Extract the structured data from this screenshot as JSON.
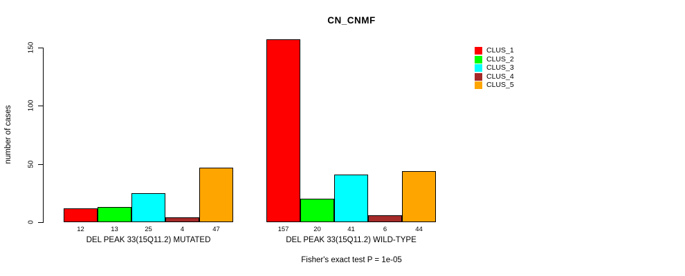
{
  "title": "CN_CNMF",
  "ylabel": "number of cases",
  "footer": "Fisher's exact test P = 1e-05",
  "legend": {
    "position": "top-right",
    "items": [
      {
        "label": "CLUS_1",
        "color": "#FF0000"
      },
      {
        "label": "CLUS_2",
        "color": "#00FF00"
      },
      {
        "label": "CLUS_3",
        "color": "#00FFFF"
      },
      {
        "label": "CLUS_4",
        "color": "#A52A2A"
      },
      {
        "label": "CLUS_5",
        "color": "#FFA500"
      }
    ]
  },
  "chart_data": {
    "type": "bar",
    "title": "CN_CNMF",
    "xlabel": "",
    "ylabel": "number of cases",
    "yticks": [
      0,
      50,
      100,
      150
    ],
    "ylim": [
      0,
      157
    ],
    "grid": false,
    "legend_position": "top-right",
    "series": [
      "CLUS_1",
      "CLUS_2",
      "CLUS_3",
      "CLUS_4",
      "CLUS_5"
    ],
    "colors": [
      "#FF0000",
      "#00FF00",
      "#00FFFF",
      "#A52A2A",
      "#FFA500"
    ],
    "groups": [
      {
        "label": "DEL PEAK 33(15Q11.2) MUTATED",
        "values": [
          12,
          13,
          25,
          4,
          47
        ]
      },
      {
        "label": "DEL PEAK 33(15Q11.2) WILD-TYPE",
        "values": [
          157,
          20,
          41,
          6,
          44
        ]
      }
    ],
    "annotation": "Fisher's exact test P = 1e-05"
  }
}
